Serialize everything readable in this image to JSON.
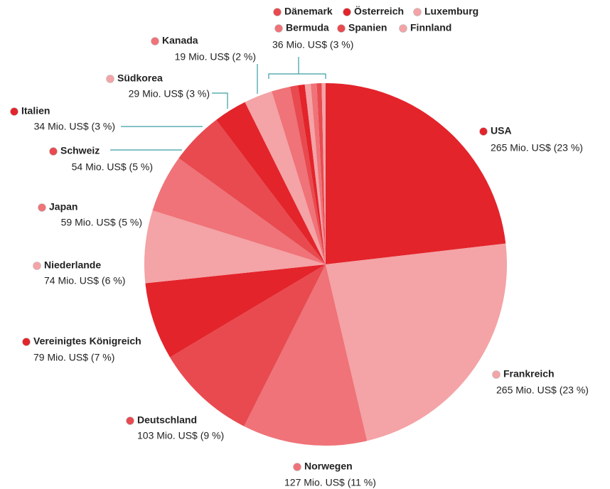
{
  "chart_data": {
    "type": "pie",
    "slices": [
      {
        "name": "USA",
        "value": 265,
        "value_label": "265 Mio. US$ (23 %)",
        "color": "#e3242b"
      },
      {
        "name": "Frankreich",
        "value": 265,
        "value_label": "265 Mio. US$ (23 %)",
        "color": "#f4a3a6"
      },
      {
        "name": "Norwegen",
        "value": 127,
        "value_label": "127 Mio. US$ (11 %)",
        "color": "#ef7378"
      },
      {
        "name": "Deutschland",
        "value": 103,
        "value_label": "103 Mio. US$ (9 %)",
        "color": "#e84a4f"
      },
      {
        "name": "Vereinigtes Königreich",
        "value": 79,
        "value_label": "79 Mio. US$ (7 %)",
        "color": "#e3242b"
      },
      {
        "name": "Niederlande",
        "value": 74,
        "value_label": "74 Mio. US$ (6 %)",
        "color": "#f4a3a6"
      },
      {
        "name": "Japan",
        "value": 59,
        "value_label": "59 Mio. US$ (5 %)",
        "color": "#ef7378"
      },
      {
        "name": "Schweiz",
        "value": 54,
        "value_label": "54 Mio. US$ (5 %)",
        "color": "#e84a4f"
      },
      {
        "name": "Italien",
        "value": 34,
        "value_label": "34 Mio. US$ (3 %)",
        "color": "#e3242b"
      },
      {
        "name": "Südkorea",
        "value": 29,
        "value_label": "29 Mio. US$ (3 %)",
        "color": "#f4a3a6"
      },
      {
        "name": "Kanada",
        "value": 19,
        "value_label": "19 Mio. US$ (2 %)",
        "color": "#ef7378"
      },
      {
        "names": [
          "Dänemark",
          "Österreich",
          "Luxemburg",
          "Bermuda",
          "Spanien",
          "Finnland"
        ],
        "value": 36,
        "value_label": "36 Mio. US$ (3 %)",
        "parts": [
          8,
          7,
          6,
          6,
          5,
          4
        ],
        "colors": [
          "#e84a4f",
          "#e3242b",
          "#f4a3a6",
          "#ef7378",
          "#e84a4f",
          "#f4a3a6"
        ]
      }
    ]
  }
}
